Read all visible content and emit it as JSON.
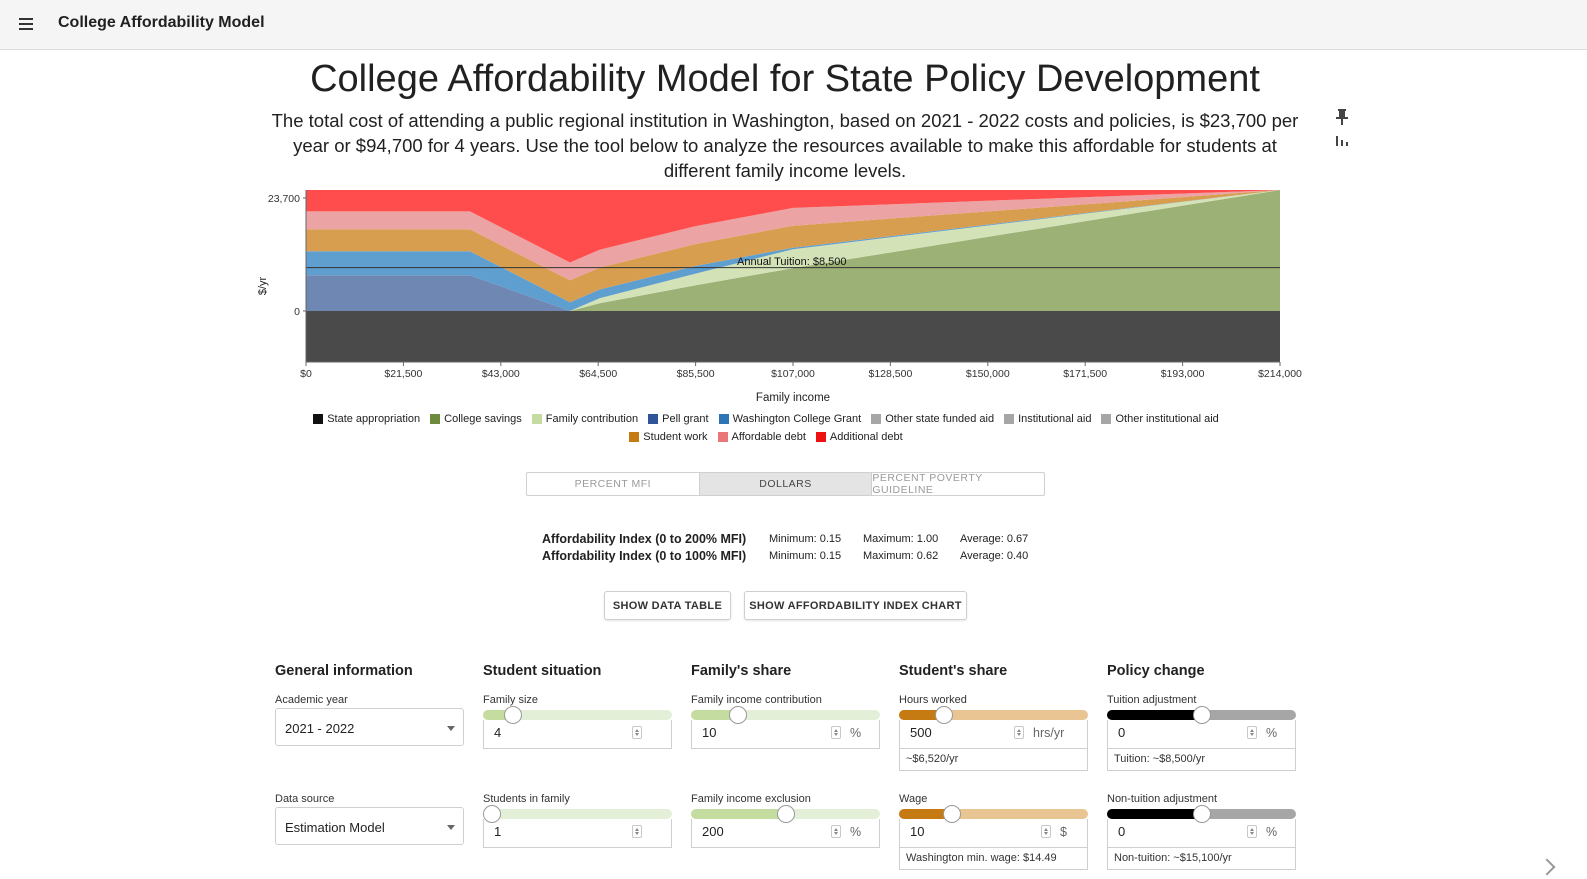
{
  "app": {
    "title": "College Affordability Model"
  },
  "page": {
    "title": "College Affordability Model for State Policy Development",
    "description": "The total cost of attending a public regional institution in Washington, based on 2021 - 2022 costs and policies, is $23,700 per year or $94,700 for 4 years. Use the tool below to analyze the resources available to make this affordable for students at different family income levels."
  },
  "icons": {
    "menu": "menu-icon",
    "pin": "pin-icon",
    "bars": "bar-chart-icon"
  },
  "chart_data": {
    "type": "area",
    "xlabel": "Family income",
    "ylabel": "$/yr",
    "x_ticks": [
      "$0",
      "$21,500",
      "$43,000",
      "$64,500",
      "$85,500",
      "$107,000",
      "$128,500",
      "$150,000",
      "$171,500",
      "$193,000",
      "$214,000"
    ],
    "y_ticks": [
      "23,700",
      "0"
    ],
    "xlim": [
      0,
      214000
    ],
    "ylim": [
      -10000,
      23700
    ],
    "reference_line": {
      "label": "Annual Tuition: $8,500",
      "value": 8500
    },
    "x": [
      0,
      36000,
      58000,
      64500,
      85500,
      107000,
      214000
    ],
    "series": [
      {
        "name": "State appropriation",
        "color": "#4a4a4a",
        "values": [
          -10000,
          -10000,
          -10000,
          -10000,
          -10000,
          -10000,
          -10000
        ]
      },
      {
        "name": "College savings",
        "color": "#9cb175",
        "values": [
          0,
          0,
          0,
          1500,
          5000,
          8400,
          24000
        ]
      },
      {
        "name": "Family contribution",
        "color": "#d4e2b7",
        "values": [
          0,
          0,
          0,
          1000,
          2300,
          3700,
          10000
        ]
      },
      {
        "name": "Pell grant",
        "color": "#6e87b3",
        "values": [
          7000,
          7000,
          0,
          0,
          0,
          0,
          0
        ]
      },
      {
        "name": "Washington College Grant",
        "color": "#5f9fd0",
        "values": [
          4700,
          4700,
          1700,
          1700,
          1500,
          300,
          0
        ]
      },
      {
        "name": "Student work",
        "color": "#d89e50",
        "values": [
          4300,
          4300,
          4300,
          4300,
          4300,
          4300,
          0
        ]
      },
      {
        "name": "Affordable debt",
        "color": "#eba3a3",
        "values": [
          3500,
          3500,
          3500,
          3500,
          3500,
          3500,
          0
        ]
      },
      {
        "name": "Additional debt",
        "color": "#ff4d4d",
        "values": [
          4200,
          4200,
          14200,
          11700,
          7100,
          3500,
          0
        ]
      }
    ]
  },
  "legend": [
    {
      "label": "State appropriation",
      "color": "#111111"
    },
    {
      "label": "College savings",
      "color": "#6e8b3d"
    },
    {
      "label": "Family contribution",
      "color": "#c5dca0"
    },
    {
      "label": "Pell grant",
      "color": "#2f5597"
    },
    {
      "label": "Washington College Grant",
      "color": "#2e75b6"
    },
    {
      "label": "Other state funded aid",
      "color": "#a6a6a6"
    },
    {
      "label": "Institutional aid",
      "color": "#a6a6a6"
    },
    {
      "label": "Other institutional aid",
      "color": "#a6a6a6"
    },
    {
      "label": "Student work",
      "color": "#c57a12"
    },
    {
      "label": "Affordable debt",
      "color": "#e97777"
    },
    {
      "label": "Additional debt",
      "color": "#ee1111"
    }
  ],
  "view_toggle": {
    "options": [
      "PERCENT MFI",
      "DOLLARS",
      "PERCENT POVERTY GUIDELINE"
    ],
    "selected": "DOLLARS"
  },
  "affordability": [
    {
      "label": "Affordability Index (0 to 200% MFI)",
      "min": "Minimum: 0.15",
      "max": "Maximum: 1.00",
      "avg": "Average: 0.67"
    },
    {
      "label": "Affordability Index (0 to 100% MFI)",
      "min": "Minimum: 0.15",
      "max": "Maximum: 0.62",
      "avg": "Average: 0.40"
    }
  ],
  "buttons": {
    "data_table": "SHOW DATA TABLE",
    "index_chart": "SHOW AFFORDABILITY INDEX CHART"
  },
  "controls": {
    "general": {
      "heading": "General information",
      "academic_year_label": "Academic year",
      "academic_year": "2021 - 2022",
      "data_source_label": "Data source",
      "data_source": "Estimation Model"
    },
    "student_situation": {
      "heading": "Student situation",
      "family_size_label": "Family size",
      "family_size": "4",
      "family_size_level": 0.16,
      "students_label": "Students in family",
      "students": "1",
      "students_level": 0.0
    },
    "family_share": {
      "heading": "Family's share",
      "contribution_label": "Family income contribution",
      "contribution": "10",
      "contribution_unit": "%",
      "contribution_level": 0.25,
      "exclusion_label": "Family income exclusion",
      "exclusion": "200",
      "exclusion_unit": "%",
      "exclusion_level": 0.5
    },
    "student_share": {
      "heading": "Student's share",
      "hours_label": "Hours worked",
      "hours": "500",
      "hours_unit": "hrs/yr",
      "hours_level": 0.24,
      "hours_note": "~$6,520/yr",
      "wage_label": "Wage",
      "wage": "10",
      "wage_unit": "$",
      "wage_level": 0.28,
      "wage_note": "Washington min. wage: $14.49"
    },
    "policy": {
      "heading": "Policy change",
      "tuition_label": "Tuition adjustment",
      "tuition": "0",
      "tuition_unit": "%",
      "tuition_level": 0.5,
      "tuition_note": "Tuition: ~$8,500/yr",
      "nontuition_label": "Non-tuition adjustment",
      "nontuition": "0",
      "nontuition_unit": "%",
      "nontuition_level": 0.5,
      "nontuition_note": "Non-tuition: ~$15,100/yr"
    }
  }
}
